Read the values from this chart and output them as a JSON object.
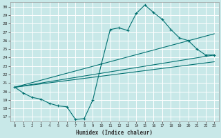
{
  "title": "",
  "xlabel": "Humidex (Indice chaleur)",
  "bg_color": "#c8e8e8",
  "line_color": "#007070",
  "grid_color": "#b0d8d8",
  "xlim": [
    -0.5,
    23.5
  ],
  "ylim": [
    16.5,
    30.5
  ],
  "xticks": [
    0,
    1,
    2,
    3,
    4,
    5,
    6,
    7,
    8,
    9,
    10,
    11,
    12,
    13,
    14,
    15,
    16,
    17,
    18,
    19,
    20,
    21,
    22,
    23
  ],
  "yticks": [
    17,
    18,
    19,
    20,
    21,
    22,
    23,
    24,
    25,
    26,
    27,
    28,
    29,
    30
  ],
  "line1_x": [
    0,
    1,
    2,
    3,
    4,
    5,
    6,
    7,
    8,
    9,
    10,
    11,
    12,
    13,
    14,
    15,
    16,
    17,
    18,
    19,
    20,
    21,
    22,
    23
  ],
  "line1_y": [
    20.5,
    19.8,
    19.3,
    19.1,
    18.6,
    18.3,
    18.2,
    16.7,
    16.8,
    19.0,
    23.3,
    27.3,
    27.5,
    27.2,
    29.2,
    30.2,
    29.3,
    28.5,
    27.3,
    26.3,
    26.0,
    25.0,
    24.3,
    24.3
  ],
  "line2_x": [
    0,
    23
  ],
  "line2_y": [
    20.5,
    24.3
  ],
  "line3_x": [
    0,
    23
  ],
  "line3_y": [
    20.5,
    23.5
  ],
  "line4_x": [
    0,
    23
  ],
  "line4_y": [
    20.5,
    26.8
  ]
}
